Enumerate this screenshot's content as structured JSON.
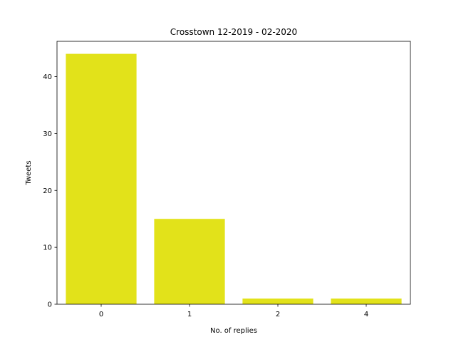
{
  "chart_data": {
    "type": "bar",
    "title": "Crosstown 12-2019 - 02-2020",
    "xlabel": "No. of replies",
    "ylabel": "Tweets",
    "categories": [
      "0",
      "1",
      "2",
      "4"
    ],
    "values": [
      44,
      15,
      1,
      1
    ],
    "yticks": [
      0,
      10,
      20,
      30,
      40
    ],
    "ylim": [
      0,
      46.2
    ],
    "bar_color": "#e2e21a",
    "grid": false,
    "legend": "none"
  }
}
